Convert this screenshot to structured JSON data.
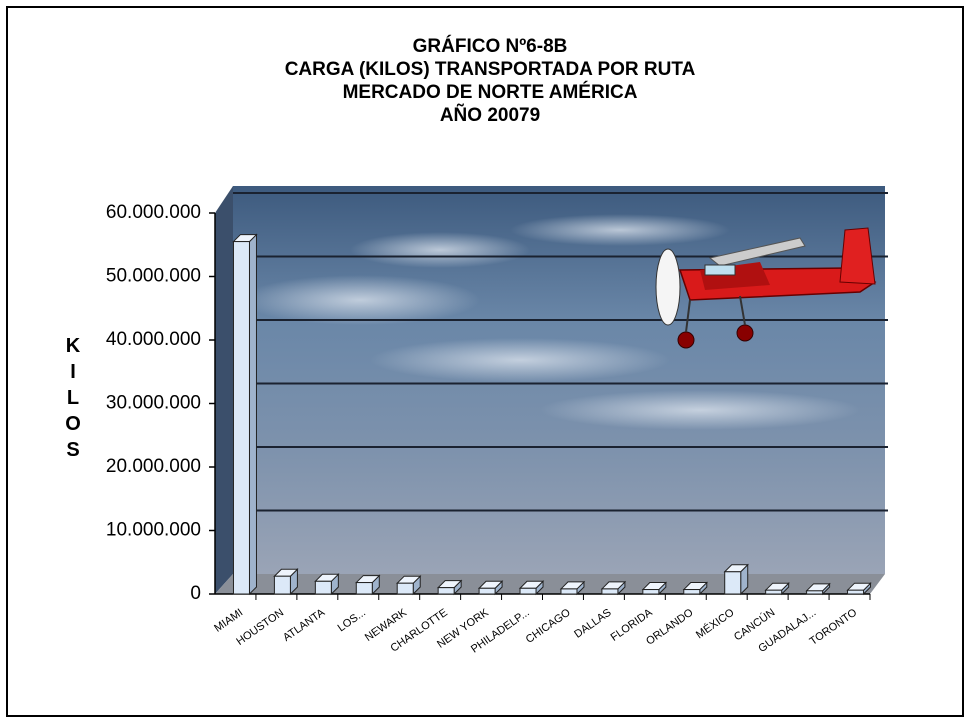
{
  "chart_data": {
    "type": "bar",
    "title": [
      "GRÁFICO Nº6-8B",
      "CARGA (KILOS) TRANSPORTADA POR RUTA",
      "MERCADO DE NORTE AMÉRICA",
      "AÑO 20079"
    ],
    "y_label": "KILOS",
    "categories": [
      "MIAMI",
      "HOUSTON",
      "ATLANTA",
      "LOS...",
      "NEWARK",
      "CHARLOTTE",
      "NEW YORK",
      "PHILADELP...",
      "CHICAGO",
      "DALLAS",
      "FLORIDA",
      "ORLANDO",
      "MÉXICO",
      "CANCÚN",
      "GUADALAJ...",
      "TORONTO"
    ],
    "values": [
      55500000,
      2800000,
      2000000,
      1800000,
      1700000,
      1000000,
      900000,
      900000,
      800000,
      800000,
      700000,
      700000,
      3500000,
      600000,
      500000,
      600000
    ],
    "color": "#dce9f8",
    "ylim": [
      0,
      60000000
    ],
    "yticks": [
      0,
      {
        "value": 10000000,
        "label": "10.000.000"
      },
      {
        "value": 20000000,
        "label": "20.000.000"
      },
      {
        "value": 30000000,
        "label": "30.000.000"
      },
      {
        "value": 40000000,
        "label": "40.000.000"
      },
      {
        "value": 50000000,
        "label": "50.000.000"
      },
      {
        "value": 60000000,
        "label": "60.000.000"
      }
    ],
    "grid": true
  }
}
